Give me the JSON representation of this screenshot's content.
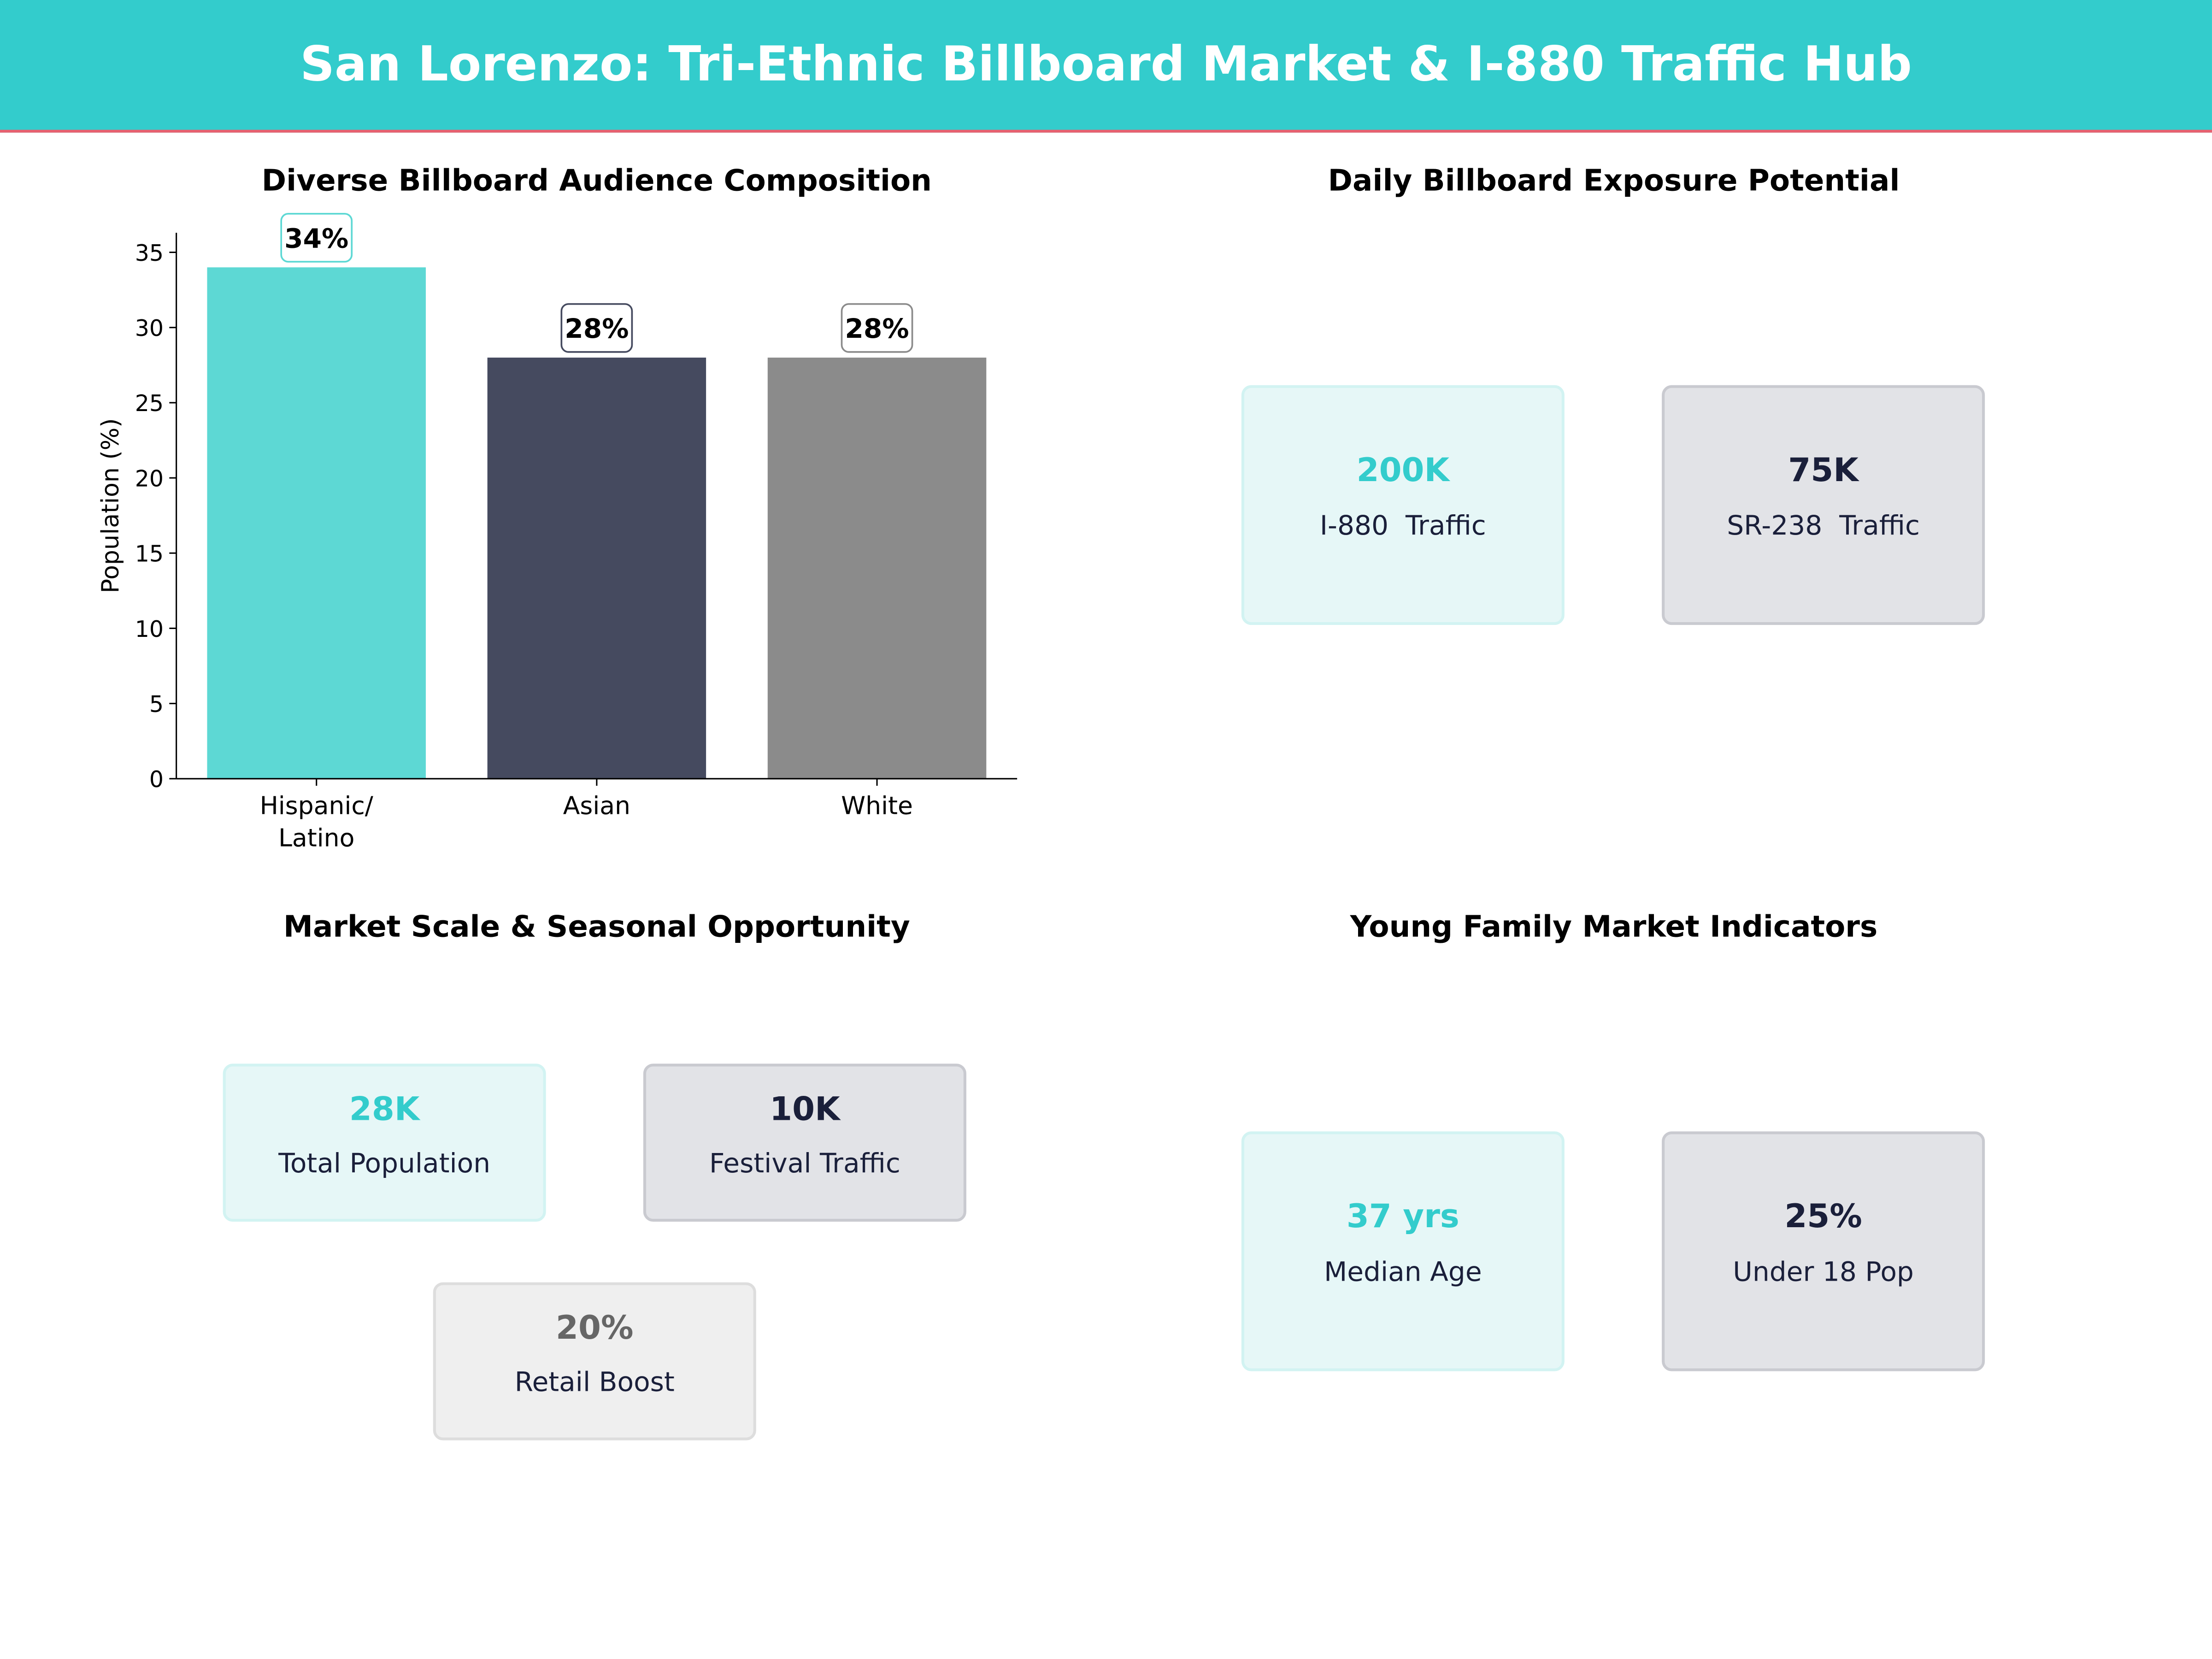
{
  "header": {
    "title": "San Lorenzo: Tri-Ethnic Billboard Market & I-880 Traffic Hub"
  },
  "colors": {
    "accent": "#33CCCC",
    "header_rule": "#E8606F",
    "dark": "#1A1F3A",
    "bar_hispanic": "#5DD8D4",
    "bar_asian": "#454A5F",
    "bar_white": "#8B8B8B"
  },
  "chart_data": {
    "type": "bar",
    "title": "Diverse Billboard Audience Composition",
    "categories": [
      "Hispanic/\nLatino",
      "Asian",
      "White"
    ],
    "values": [
      34,
      28,
      28
    ],
    "data_labels": [
      "34%",
      "28%",
      "28%"
    ],
    "xlabel": "",
    "ylabel": "Population (%)",
    "ylim": [
      0,
      36.3
    ],
    "yticks": [
      0,
      5,
      10,
      15,
      20,
      25,
      30,
      35
    ],
    "grid": false
  },
  "exposure": {
    "title": "Daily Billboard Exposure Potential",
    "cards": [
      {
        "value": "200K",
        "label": "I-880  Traffic"
      },
      {
        "value": "75K",
        "label": "SR-238  Traffic"
      }
    ]
  },
  "market": {
    "title": "Market Scale & Seasonal Opportunity",
    "cards": [
      {
        "value": "28K",
        "label": "Total Population"
      },
      {
        "value": "10K",
        "label": "Festival Traffic"
      },
      {
        "value": "20%",
        "label": "Retail Boost"
      }
    ]
  },
  "family": {
    "title": "Young Family Market Indicators",
    "cards": [
      {
        "value": "37 yrs",
        "label": "Median Age"
      },
      {
        "value": "25%",
        "label": "Under 18 Pop"
      }
    ]
  }
}
